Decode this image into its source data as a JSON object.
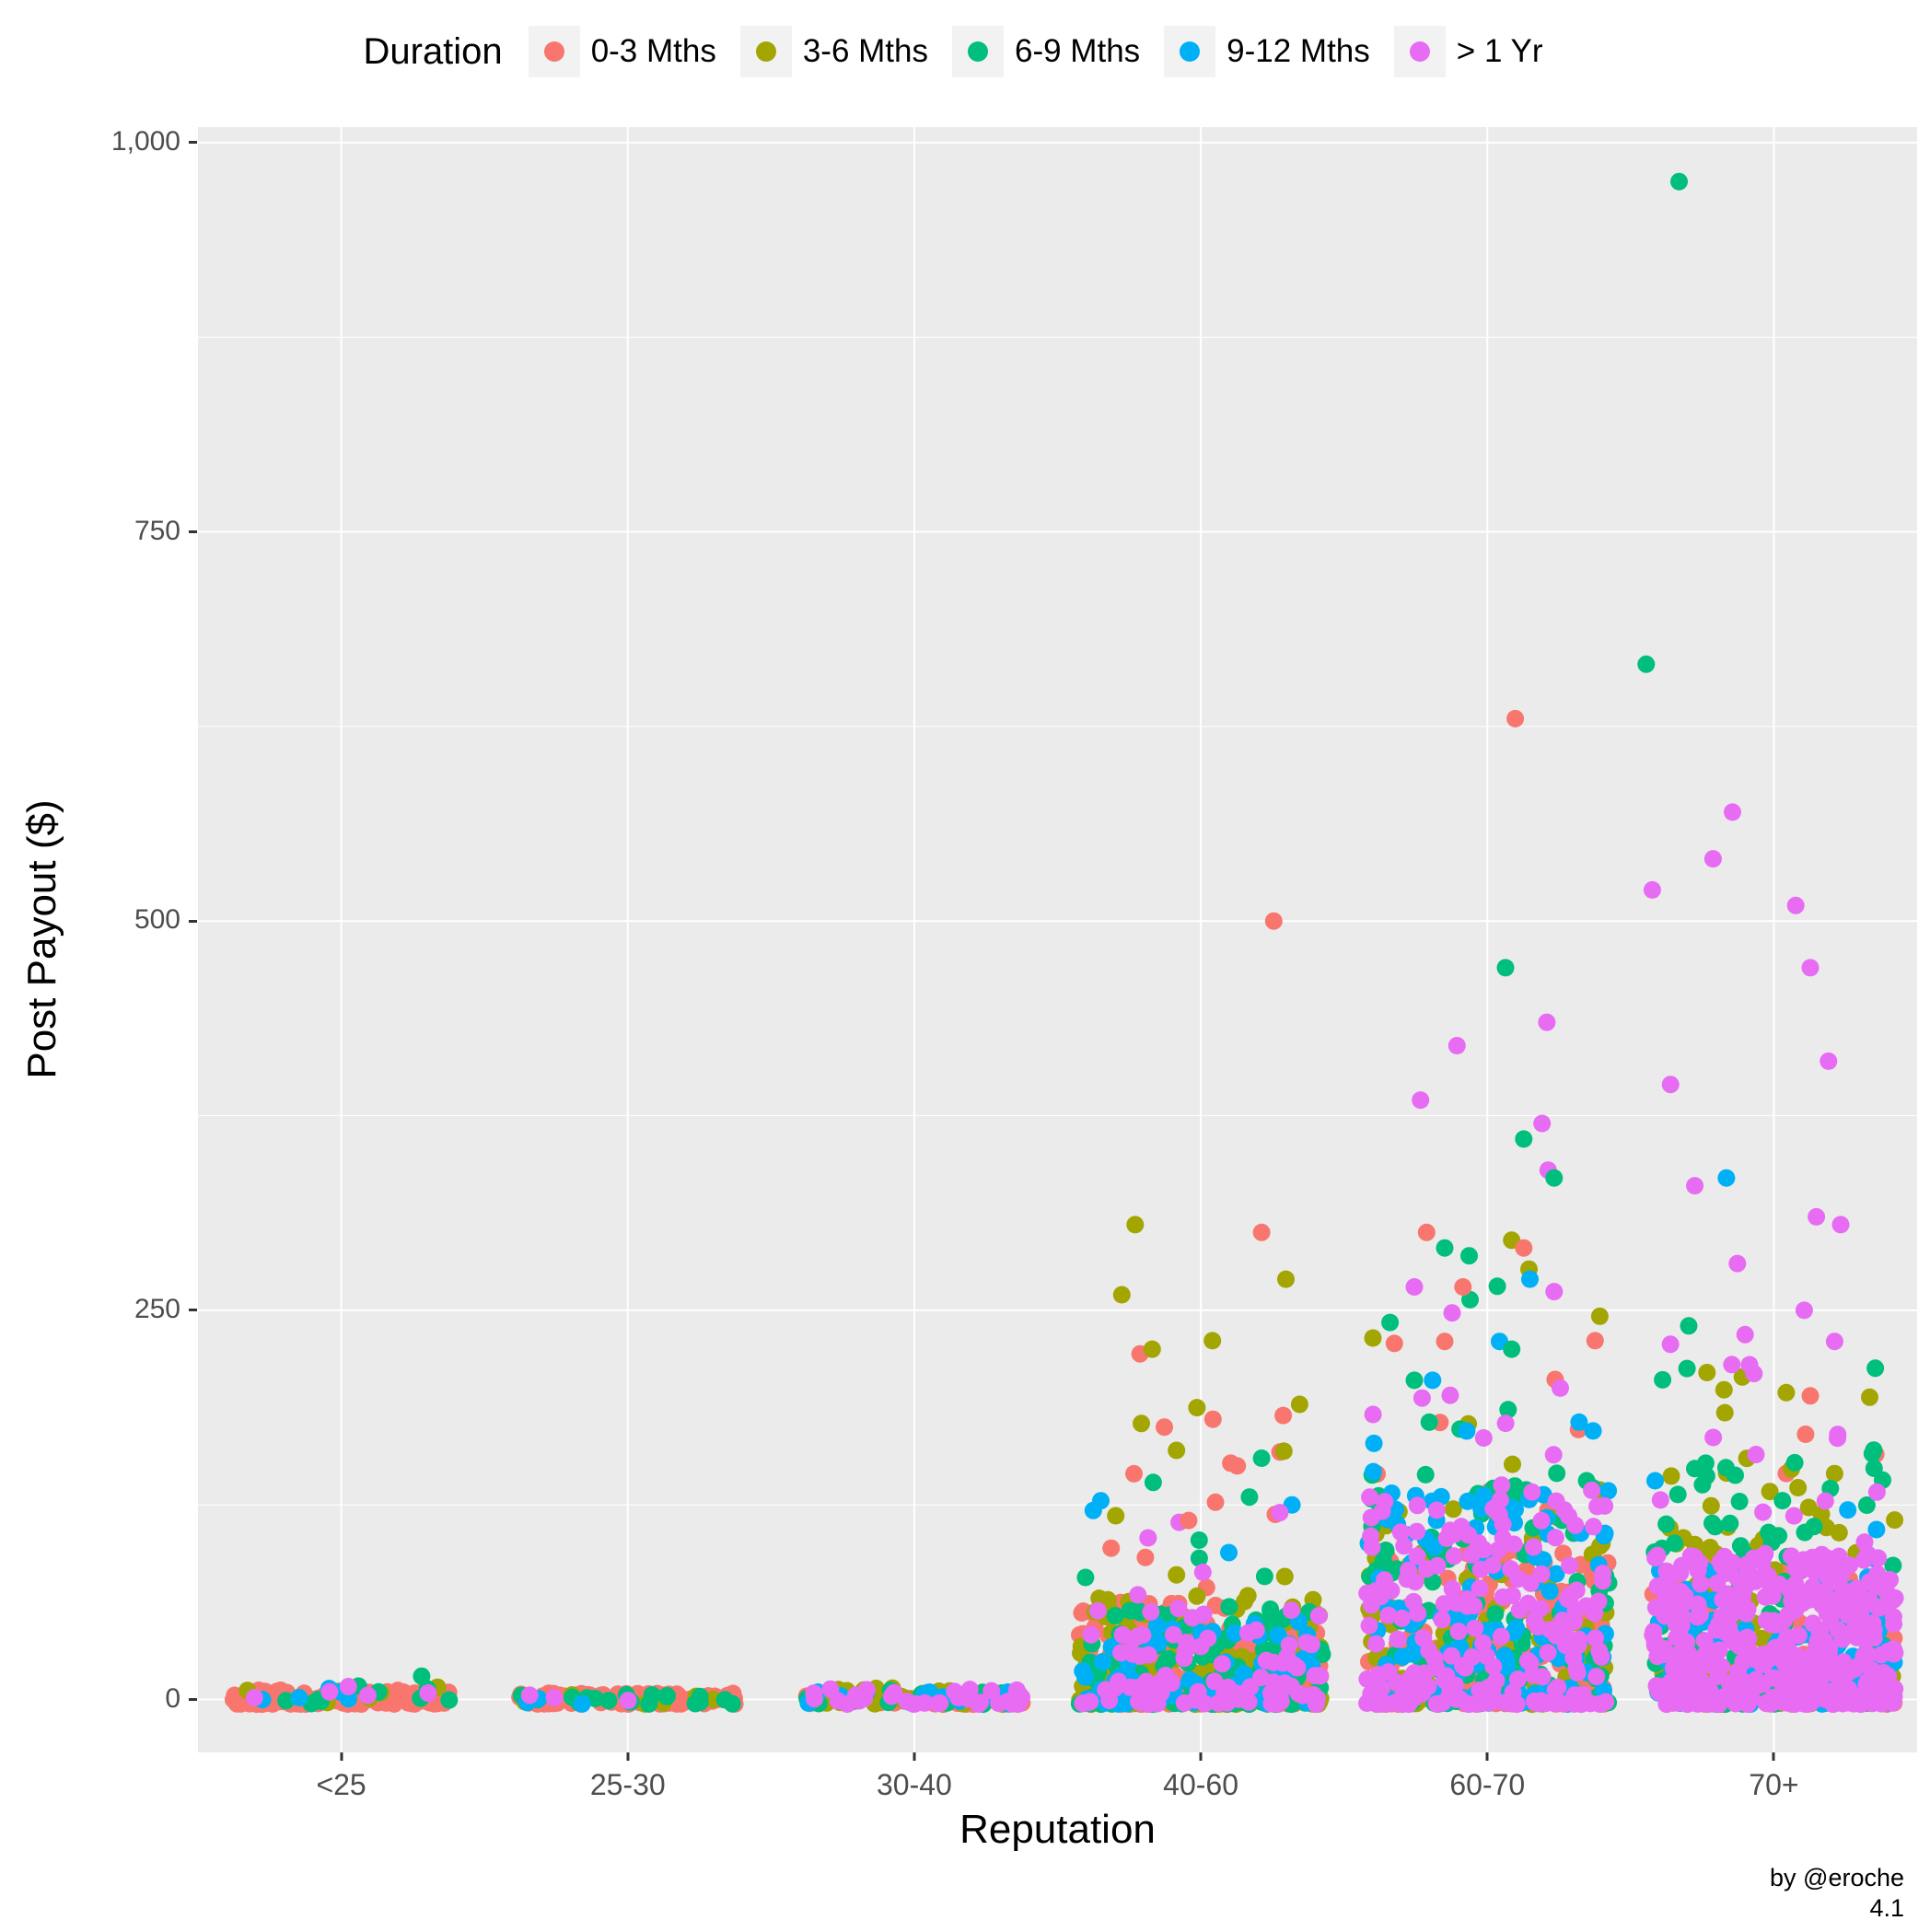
{
  "legend": {
    "title": "Duration",
    "entries": [
      {
        "label": "0-3 Mths",
        "color": "#F8766D"
      },
      {
        "label": "3-6 Mths",
        "color": "#A3A500"
      },
      {
        "label": "6-9 Mths",
        "color": "#00BF7D"
      },
      {
        "label": "9-12 Mths",
        "color": "#00B0F6"
      },
      {
        "label": "> 1 Yr",
        "color": "#E76BF3"
      }
    ]
  },
  "axes": {
    "x_title": "Reputation",
    "y_title": "Post Payout ($)",
    "x_tick_labels": [
      "<25",
      "25-30",
      "30-40",
      "40-60",
      "60-70",
      "70+"
    ],
    "y_ticks": [
      0,
      250,
      500,
      750,
      1000
    ],
    "y_tick_labels": [
      "0",
      "250",
      "500",
      "750",
      "1,000"
    ]
  },
  "caption": {
    "line1": "by @eroche",
    "line2": "4.1"
  },
  "style": {
    "panel_bg": "#EBEBEB",
    "grid_color": "#FFFFFF",
    "tick_text_color": "#4D4D4D",
    "tick_mark_color": "#333333",
    "legend_key_bg": "#F2F2F2",
    "point_radius": 9.5
  },
  "chart_data": {
    "type": "scatter",
    "variant": "jittered-strip",
    "title": "",
    "xlabel": "Reputation",
    "ylabel": "Post Payout ($)",
    "categories": [
      "<25",
      "25-30",
      "30-40",
      "40-60",
      "60-70",
      "70+"
    ],
    "series": [
      {
        "name": "0-3 Mths",
        "color": "#F8766D"
      },
      {
        "name": "3-6 Mths",
        "color": "#A3A500"
      },
      {
        "name": "6-9 Mths",
        "color": "#00BF7D"
      },
      {
        "name": "9-12 Mths",
        "color": "#00B0F6"
      },
      {
        "name": "> 1 Yr",
        "color": "#E76BF3"
      }
    ],
    "y_ticks": [
      0,
      250,
      500,
      750,
      1000
    ],
    "ylim": [
      -34,
      1010
    ],
    "grid": {
      "major": [
        0,
        250,
        500,
        750,
        1000
      ],
      "minor": [
        125,
        375,
        625,
        875
      ]
    },
    "legend_position": "top",
    "clusters_note": "Dense jittered clusters per reputation band and duration series; count = approx points, y range and concentration exponent k (higher k = denser near ymin).",
    "clusters": [
      {
        "cat": 0,
        "series": 0,
        "count": 150,
        "ymin": -3,
        "ymax": 6,
        "k": 1.5
      },
      {
        "cat": 0,
        "series": 1,
        "count": 6,
        "ymin": -3,
        "ymax": 8,
        "k": 1.2
      },
      {
        "cat": 0,
        "series": 2,
        "count": 9,
        "ymin": -3,
        "ymax": 10,
        "k": 1.2
      },
      {
        "cat": 0,
        "series": 3,
        "count": 5,
        "ymin": -3,
        "ymax": 8,
        "k": 1.2
      },
      {
        "cat": 0,
        "series": 4,
        "count": 5,
        "ymin": -3,
        "ymax": 9,
        "k": 1.2
      },
      {
        "cat": 1,
        "series": 0,
        "count": 120,
        "ymin": -3,
        "ymax": 4,
        "k": 1.2
      },
      {
        "cat": 1,
        "series": 1,
        "count": 8,
        "ymin": -3,
        "ymax": 4,
        "k": 1.2
      },
      {
        "cat": 1,
        "series": 2,
        "count": 20,
        "ymin": -3,
        "ymax": 4,
        "k": 1.2
      },
      {
        "cat": 1,
        "series": 3,
        "count": 3,
        "ymin": -3,
        "ymax": 4,
        "k": 1.2
      },
      {
        "cat": 1,
        "series": 4,
        "count": 3,
        "ymin": -3,
        "ymax": 4,
        "k": 1.2
      },
      {
        "cat": 2,
        "series": 0,
        "count": 75,
        "ymin": -3,
        "ymax": 5,
        "k": 1.3
      },
      {
        "cat": 2,
        "series": 1,
        "count": 50,
        "ymin": -3,
        "ymax": 8,
        "k": 1.3
      },
      {
        "cat": 2,
        "series": 2,
        "count": 15,
        "ymin": -3,
        "ymax": 6,
        "k": 1.3
      },
      {
        "cat": 2,
        "series": 3,
        "count": 18,
        "ymin": -3,
        "ymax": 6,
        "k": 1.3
      },
      {
        "cat": 2,
        "series": 4,
        "count": 32,
        "ymin": -3,
        "ymax": 7,
        "k": 1.3
      },
      {
        "cat": 3,
        "series": 0,
        "count": 170,
        "ymin": -3,
        "ymax": 62,
        "k": 2.2
      },
      {
        "cat": 3,
        "series": 1,
        "count": 140,
        "ymin": -3,
        "ymax": 68,
        "k": 2.2
      },
      {
        "cat": 3,
        "series": 2,
        "count": 150,
        "ymin": -3,
        "ymax": 60,
        "k": 2.2
      },
      {
        "cat": 3,
        "series": 3,
        "count": 70,
        "ymin": -3,
        "ymax": 55,
        "k": 2.2
      },
      {
        "cat": 3,
        "series": 4,
        "count": 95,
        "ymin": -3,
        "ymax": 60,
        "k": 2.2
      },
      {
        "cat": 3,
        "series": 0,
        "count": 9,
        "ymin": 62,
        "ymax": 185,
        "k": 1
      },
      {
        "cat": 3,
        "series": 1,
        "count": 7,
        "ymin": 68,
        "ymax": 235,
        "k": 1
      },
      {
        "cat": 3,
        "series": 2,
        "count": 5,
        "ymin": 60,
        "ymax": 160,
        "k": 1
      },
      {
        "cat": 3,
        "series": 3,
        "count": 3,
        "ymin": 55,
        "ymax": 128,
        "k": 1
      },
      {
        "cat": 3,
        "series": 4,
        "count": 4,
        "ymin": 60,
        "ymax": 122,
        "k": 1
      },
      {
        "cat": 4,
        "series": 0,
        "count": 180,
        "ymin": -3,
        "ymax": 95,
        "k": 2.0
      },
      {
        "cat": 4,
        "series": 1,
        "count": 110,
        "ymin": -3,
        "ymax": 125,
        "k": 2.0
      },
      {
        "cat": 4,
        "series": 2,
        "count": 130,
        "ymin": -3,
        "ymax": 155,
        "k": 2.0
      },
      {
        "cat": 4,
        "series": 3,
        "count": 130,
        "ymin": -3,
        "ymax": 135,
        "k": 2.0
      },
      {
        "cat": 4,
        "series": 4,
        "count": 210,
        "ymin": -3,
        "ymax": 135,
        "k": 2.0
      },
      {
        "cat": 4,
        "series": 0,
        "count": 8,
        "ymin": 95,
        "ymax": 240,
        "k": 1
      },
      {
        "cat": 4,
        "series": 1,
        "count": 6,
        "ymin": 125,
        "ymax": 300,
        "k": 1
      },
      {
        "cat": 4,
        "series": 2,
        "count": 6,
        "ymin": 155,
        "ymax": 295,
        "k": 1
      },
      {
        "cat": 4,
        "series": 3,
        "count": 5,
        "ymin": 135,
        "ymax": 275,
        "k": 1
      },
      {
        "cat": 4,
        "series": 4,
        "count": 8,
        "ymin": 135,
        "ymax": 270,
        "k": 1
      },
      {
        "cat": 5,
        "series": 0,
        "count": 70,
        "ymin": -3,
        "ymax": 85,
        "k": 2.0
      },
      {
        "cat": 5,
        "series": 1,
        "count": 90,
        "ymin": -3,
        "ymax": 150,
        "k": 2.0
      },
      {
        "cat": 5,
        "series": 2,
        "count": 115,
        "ymin": -3,
        "ymax": 160,
        "k": 2.0
      },
      {
        "cat": 5,
        "series": 3,
        "count": 110,
        "ymin": -3,
        "ymax": 85,
        "k": 1.8
      },
      {
        "cat": 5,
        "series": 4,
        "count": 430,
        "ymin": -3,
        "ymax": 95,
        "k": 1.8
      },
      {
        "cat": 5,
        "series": 0,
        "count": 5,
        "ymin": 85,
        "ymax": 175,
        "k": 1
      },
      {
        "cat": 5,
        "series": 1,
        "count": 6,
        "ymin": 150,
        "ymax": 212,
        "k": 1
      },
      {
        "cat": 5,
        "series": 2,
        "count": 4,
        "ymin": 160,
        "ymax": 230,
        "k": 1
      },
      {
        "cat": 5,
        "series": 3,
        "count": 4,
        "ymin": 85,
        "ymax": 200,
        "k": 1
      },
      {
        "cat": 5,
        "series": 4,
        "count": 14,
        "ymin": 95,
        "ymax": 235,
        "k": 1
      }
    ],
    "outliers_note": "Individually visible high points: [category index, series index, payout $, horizontal jitter offset -1..1]",
    "outliers": [
      [
        0,
        2,
        15,
        0.74
      ],
      [
        3,
        0,
        500,
        0.6
      ],
      [
        3,
        1,
        305,
        -0.54
      ],
      [
        3,
        0,
        300,
        0.5
      ],
      [
        3,
        1,
        270,
        0.7
      ],
      [
        3,
        1,
        260,
        -0.65
      ],
      [
        3,
        0,
        222,
        -0.5
      ],
      [
        3,
        1,
        225,
        -0.4
      ],
      [
        3,
        0,
        180,
        0.1
      ],
      [
        3,
        0,
        175,
        -0.3
      ],
      [
        3,
        1,
        160,
        -0.2
      ],
      [
        3,
        2,
        155,
        0.5
      ],
      [
        3,
        0,
        150,
        0.3
      ],
      [
        3,
        0,
        145,
        -0.55
      ],
      [
        3,
        2,
        130,
        0.4
      ],
      [
        3,
        3,
        125,
        0.75
      ],
      [
        3,
        4,
        120,
        0.65
      ],
      [
        3,
        0,
        115,
        -0.1
      ],
      [
        3,
        1,
        118,
        -0.7
      ],
      [
        4,
        0,
        630,
        0.23
      ],
      [
        4,
        2,
        470,
        0.15
      ],
      [
        4,
        4,
        435,
        0.49
      ],
      [
        4,
        4,
        420,
        -0.25
      ],
      [
        4,
        4,
        385,
        -0.55
      ],
      [
        4,
        4,
        370,
        0.45
      ],
      [
        4,
        2,
        360,
        0.3
      ],
      [
        4,
        4,
        340,
        0.5
      ],
      [
        4,
        2,
        335,
        0.55
      ],
      [
        4,
        1,
        295,
        0.2
      ],
      [
        4,
        0,
        300,
        -0.5
      ],
      [
        4,
        0,
        290,
        0.3
      ],
      [
        4,
        2,
        290,
        -0.35
      ],
      [
        4,
        2,
        285,
        -0.15
      ],
      [
        4,
        3,
        270,
        0.35
      ],
      [
        4,
        4,
        265,
        -0.6
      ],
      [
        4,
        0,
        265,
        -0.2
      ],
      [
        4,
        4,
        262,
        0.55
      ],
      [
        4,
        3,
        230,
        0.1
      ],
      [
        4,
        0,
        230,
        -0.35
      ],
      [
        4,
        2,
        225,
        0.2
      ],
      [
        4,
        4,
        200,
        0.6
      ],
      [
        4,
        2,
        205,
        -0.6
      ],
      [
        4,
        3,
        205,
        -0.45
      ],
      [
        5,
        2,
        975,
        -0.78
      ],
      [
        5,
        2,
        665,
        -1.05
      ],
      [
        5,
        4,
        570,
        -0.34
      ],
      [
        5,
        4,
        540,
        -0.5
      ],
      [
        5,
        4,
        520,
        -1.0
      ],
      [
        5,
        4,
        510,
        0.18
      ],
      [
        5,
        4,
        470,
        0.3
      ],
      [
        5,
        4,
        410,
        0.45
      ],
      [
        5,
        4,
        395,
        -0.85
      ],
      [
        5,
        3,
        335,
        -0.39
      ],
      [
        5,
        4,
        330,
        -0.65
      ],
      [
        5,
        4,
        310,
        0.35
      ],
      [
        5,
        4,
        305,
        0.55
      ],
      [
        5,
        4,
        280,
        -0.3
      ],
      [
        5,
        4,
        250,
        0.25
      ],
      [
        5,
        4,
        230,
        0.5
      ],
      [
        5,
        4,
        215,
        -0.2
      ],
      [
        5,
        1,
        210,
        -0.55
      ],
      [
        5,
        0,
        195,
        0.3
      ],
      [
        5,
        2,
        240,
        -0.7
      ]
    ],
    "caption": [
      "by @eroche",
      "4.1"
    ]
  }
}
